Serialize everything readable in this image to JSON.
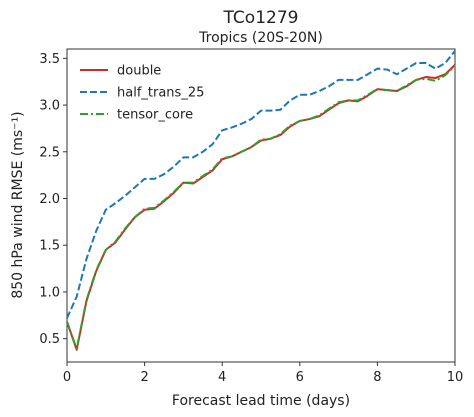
{
  "chart_data": {
    "type": "line",
    "title": "TCo1279",
    "subtitle": "Tropics (20S-20N)",
    "xlabel": "Forecast lead time (days)",
    "ylabel": "850 hPa wind RMSE (ms⁻¹)",
    "xlim": [
      0,
      10
    ],
    "ylim": [
      0.25,
      3.6
    ],
    "xticks": [
      0,
      2,
      4,
      6,
      8,
      10
    ],
    "xtick_labels": [
      "0",
      "2",
      "4",
      "6",
      "8",
      "10"
    ],
    "yticks": [
      0.5,
      1.0,
      1.5,
      2.0,
      2.5,
      3.0,
      3.5
    ],
    "ytick_labels": [
      "0.5",
      "1.0",
      "1.5",
      "2.0",
      "2.5",
      "3.0",
      "3.5"
    ],
    "grid": false,
    "legend_position": "top-left",
    "x": [
      0,
      0.25,
      0.5,
      0.75,
      1.0,
      1.25,
      1.5,
      1.75,
      2.0,
      2.25,
      2.5,
      2.75,
      3.0,
      3.25,
      3.5,
      3.75,
      4.0,
      4.25,
      4.5,
      4.75,
      5.0,
      5.25,
      5.5,
      5.75,
      6.0,
      6.25,
      6.5,
      6.75,
      7.0,
      7.25,
      7.5,
      7.75,
      8.0,
      8.25,
      8.5,
      8.75,
      9.0,
      9.25,
      9.5,
      9.75,
      10.0
    ],
    "series": [
      {
        "name": "double",
        "color": "#d62728",
        "dash": "solid",
        "values": [
          0.68,
          0.38,
          0.9,
          1.22,
          1.45,
          1.53,
          1.67,
          1.8,
          1.88,
          1.89,
          1.97,
          2.06,
          2.17,
          2.16,
          2.23,
          2.3,
          2.42,
          2.45,
          2.5,
          2.55,
          2.62,
          2.64,
          2.68,
          2.77,
          2.83,
          2.85,
          2.88,
          2.95,
          3.02,
          3.05,
          3.04,
          3.1,
          3.17,
          3.16,
          3.15,
          3.2,
          3.27,
          3.3,
          3.29,
          3.33,
          3.43
        ]
      },
      {
        "name": "half_trans_25",
        "color": "#1f77b4",
        "dash": "dashed",
        "values": [
          0.72,
          0.95,
          1.35,
          1.65,
          1.88,
          1.95,
          2.03,
          2.12,
          2.21,
          2.21,
          2.26,
          2.34,
          2.44,
          2.44,
          2.5,
          2.58,
          2.73,
          2.76,
          2.8,
          2.85,
          2.94,
          2.94,
          2.95,
          3.05,
          3.11,
          3.11,
          3.15,
          3.2,
          3.27,
          3.27,
          3.27,
          3.33,
          3.39,
          3.38,
          3.33,
          3.39,
          3.45,
          3.45,
          3.39,
          3.45,
          3.58
        ]
      },
      {
        "name": "tensor_core",
        "color": "#2ca02c",
        "dash": "dashdot",
        "values": [
          0.68,
          0.39,
          0.91,
          1.23,
          1.45,
          1.54,
          1.68,
          1.8,
          1.89,
          1.9,
          1.98,
          2.07,
          2.17,
          2.17,
          2.24,
          2.31,
          2.43,
          2.45,
          2.5,
          2.55,
          2.63,
          2.64,
          2.69,
          2.78,
          2.83,
          2.85,
          2.89,
          2.96,
          3.03,
          3.05,
          3.05,
          3.11,
          3.17,
          3.16,
          3.15,
          3.21,
          3.27,
          3.28,
          3.26,
          3.32,
          3.42
        ]
      }
    ]
  }
}
